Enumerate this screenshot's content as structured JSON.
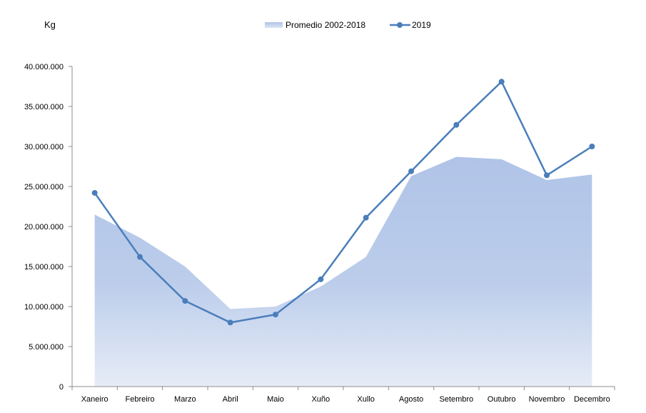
{
  "chart_data": {
    "type": "line",
    "title": "",
    "xlabel": "",
    "ylabel": "",
    "unit_label": "Kg",
    "categories": [
      "Xaneiro",
      "Febreiro",
      "Marzo",
      "Abril",
      "Maio",
      "Xuño",
      "Xullo",
      "Agosto",
      "Setembro",
      "Outubro",
      "Novembro",
      "Decembro"
    ],
    "series": [
      {
        "name": "Promedio 2002-2018",
        "kind": "area",
        "color": "#b4c7e7",
        "values": [
          21500000,
          18600000,
          15000000,
          9700000,
          10000000,
          12500000,
          16200000,
          26300000,
          28700000,
          28400000,
          25800000,
          26500000
        ]
      },
      {
        "name": "2019",
        "kind": "line",
        "color": "#4a7ebb",
        "values": [
          24200000,
          16200000,
          10700000,
          8000000,
          9000000,
          13400000,
          21100000,
          26900000,
          32700000,
          38100000,
          26400000,
          30000000
        ]
      }
    ],
    "ylim": [
      0,
      40000000
    ],
    "y_ticks": [
      0,
      5000000,
      10000000,
      15000000,
      20000000,
      25000000,
      30000000,
      35000000,
      40000000
    ],
    "y_tick_labels": [
      "0",
      "5.000.000",
      "10.000.000",
      "15.000.000",
      "20.000.000",
      "25.000.000",
      "30.000.000",
      "35.000.000",
      "40.000.000"
    ],
    "grid": false,
    "legend_position": "top-center"
  }
}
